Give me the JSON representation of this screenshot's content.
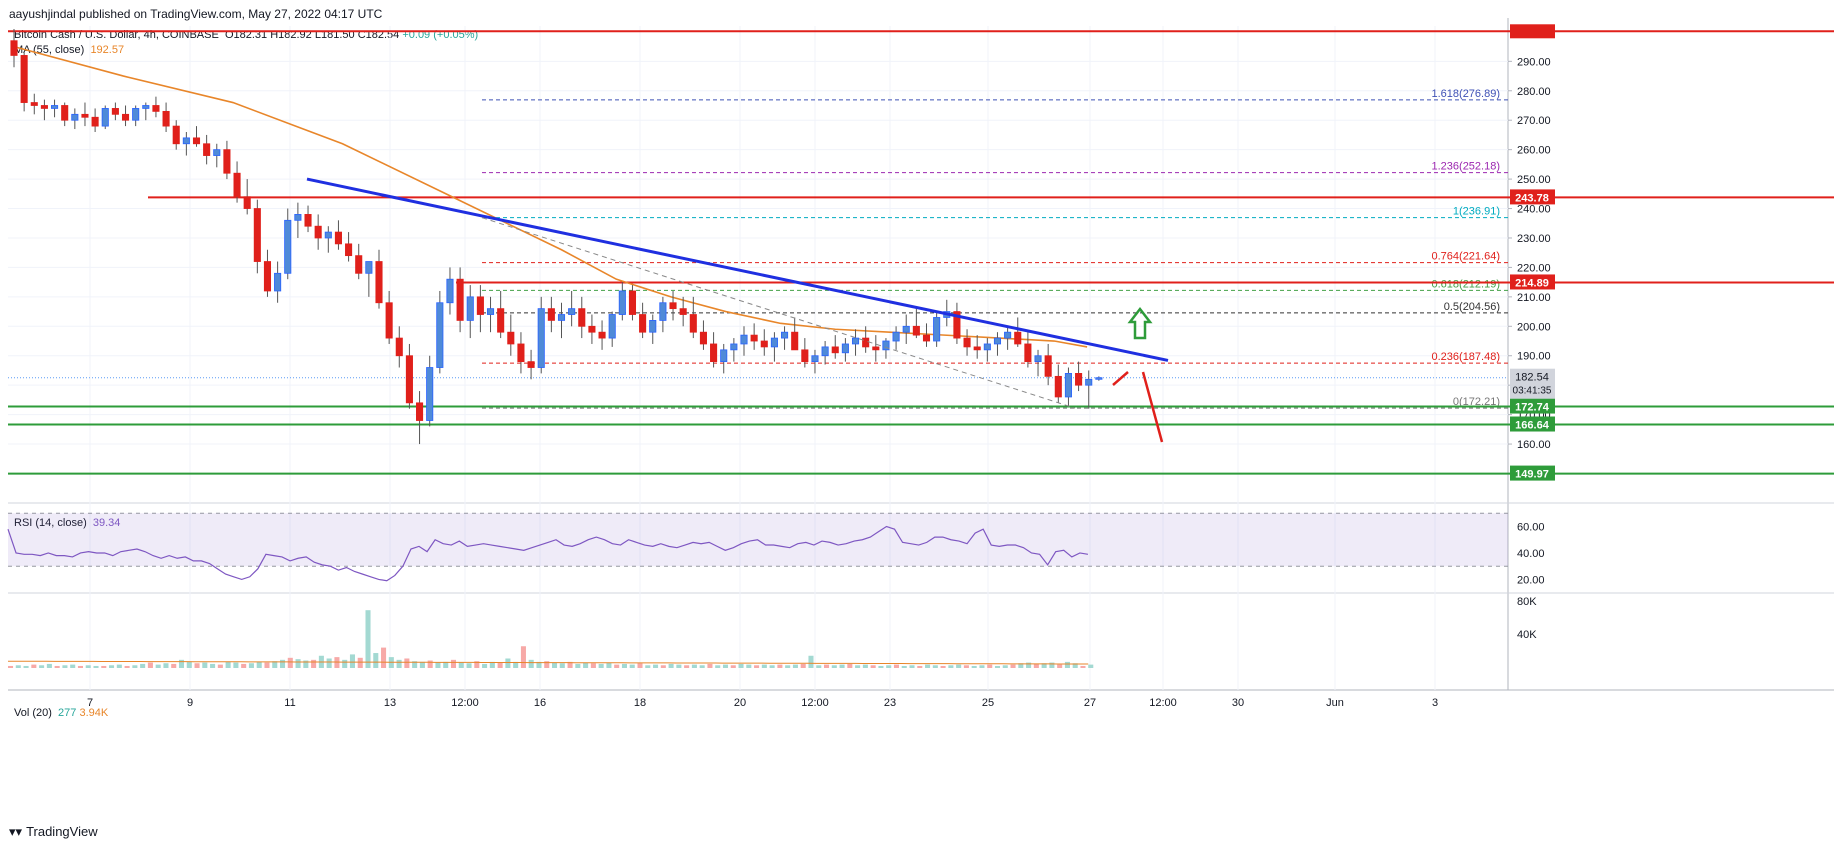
{
  "header": {
    "credit": "aayushjindal published on TradingView.com, May 27, 2022 04:17 UTC",
    "symbol": "Bitcoin Cash / U.S. Dollar, 4h, COINBASE",
    "ohlc": {
      "o": "O182.31",
      "h": "H182.92",
      "l": "L181.50",
      "c": "C182.54",
      "chg": "+0.09 (+0.05%)"
    },
    "ma_label": "MA (55, close)",
    "ma_value": "192.57",
    "rsi_label": "RSI (14, close)",
    "rsi_value": "39.34",
    "vol_label": "Vol (20)",
    "vol_value": "277",
    "vol_ma": "3.94K",
    "brand": "TradingView"
  },
  "chart_data": {
    "type": "candlestick",
    "currency": "USD",
    "price_axis": {
      "min": 141,
      "max": 302,
      "ticks": [
        160,
        170,
        180,
        190,
        200,
        210,
        220,
        230,
        240,
        250,
        260,
        270,
        280,
        290
      ]
    },
    "time_axis": {
      "labels": [
        "7",
        "9",
        "11",
        "13",
        "12:00",
        "16",
        "18",
        "20",
        "12:00",
        "23",
        "25",
        "27",
        "12:00",
        "30",
        "Jun",
        "3"
      ]
    },
    "last_price": {
      "value": "182.54",
      "countdown": "03:41:35"
    },
    "horizontal_levels": [
      {
        "price": 300.2,
        "color": "#e0201b",
        "label": ""
      },
      {
        "price": 243.78,
        "color": "#e0201b",
        "label": "243.78"
      },
      {
        "price": 214.89,
        "color": "#e0201b",
        "label": "214.89"
      },
      {
        "price": 172.74,
        "color": "#2e9c3a",
        "label": "172.74"
      },
      {
        "price": 166.64,
        "color": "#2e9c3a",
        "label": "166.64"
      },
      {
        "price": 149.97,
        "color": "#2e9c3a",
        "label": "149.97"
      }
    ],
    "fib_levels": [
      {
        "ratio": "1.618",
        "price": 276.89,
        "label": "1.618(276.89)",
        "color": "#3f51b5"
      },
      {
        "ratio": "1.236",
        "price": 252.18,
        "label": "1.236(252.18)",
        "color": "#9c27b0"
      },
      {
        "ratio": "1",
        "price": 236.91,
        "label": "1(236.91)",
        "color": "#00acc1"
      },
      {
        "ratio": "0.764",
        "price": 221.64,
        "label": "0.764(221.64)",
        "color": "#e0201b"
      },
      {
        "ratio": "0.618",
        "price": 212.19,
        "label": "0.618(212.19)",
        "color": "#43a047"
      },
      {
        "ratio": "0.5",
        "price": 204.56,
        "label": "0.5(204.56)",
        "color": "#333333"
      },
      {
        "ratio": "0.236",
        "price": 187.48,
        "label": "0.236(187.48)",
        "color": "#e0201b"
      },
      {
        "ratio": "0",
        "price": 172.21,
        "label": "0(172.21)",
        "color": "#777777"
      }
    ],
    "trendline": {
      "from": {
        "bar": 49,
        "price": 250
      },
      "to": {
        "bar": 188,
        "price": 188.4
      },
      "color": "#1f2fe0"
    },
    "candles": [
      [
        297,
        301,
        288,
        292
      ],
      [
        292,
        293,
        273,
        276
      ],
      [
        276,
        279,
        272,
        275
      ],
      [
        275,
        277,
        270,
        274
      ],
      [
        274,
        277,
        271,
        275
      ],
      [
        275,
        276,
        268,
        270
      ],
      [
        270,
        274,
        267,
        272
      ],
      [
        272,
        276,
        268,
        271
      ],
      [
        271,
        274,
        266,
        268
      ],
      [
        268,
        275,
        267,
        274
      ],
      [
        274,
        276,
        270,
        272
      ],
      [
        272,
        275,
        268,
        270
      ],
      [
        270,
        275,
        268,
        274
      ],
      [
        274,
        276,
        270,
        275
      ],
      [
        275,
        278,
        271,
        273
      ],
      [
        273,
        276,
        266,
        268
      ],
      [
        268,
        270,
        260,
        262
      ],
      [
        262,
        266,
        258,
        264
      ],
      [
        264,
        268,
        261,
        262
      ],
      [
        262,
        265,
        255,
        258
      ],
      [
        258,
        262,
        254,
        260
      ],
      [
        260,
        263,
        250,
        252
      ],
      [
        252,
        256,
        242,
        244
      ],
      [
        244,
        250,
        238,
        240
      ],
      [
        240,
        243,
        218,
        222
      ],
      [
        222,
        226,
        210,
        212
      ],
      [
        212,
        222,
        208,
        218
      ],
      [
        218,
        240,
        216,
        236
      ],
      [
        236,
        242,
        230,
        238
      ],
      [
        238,
        241,
        232,
        234
      ],
      [
        234,
        238,
        226,
        230
      ],
      [
        230,
        234,
        225,
        232
      ],
      [
        232,
        236,
        226,
        228
      ],
      [
        228,
        232,
        222,
        224
      ],
      [
        224,
        228,
        216,
        218
      ],
      [
        218,
        222,
        210,
        222
      ],
      [
        222,
        226,
        206,
        208
      ],
      [
        208,
        212,
        194,
        196
      ],
      [
        196,
        200,
        186,
        190
      ],
      [
        190,
        194,
        172,
        174
      ],
      [
        174,
        178,
        160,
        168
      ],
      [
        168,
        190,
        166,
        186
      ],
      [
        186,
        212,
        184,
        208
      ],
      [
        208,
        220,
        204,
        216
      ],
      [
        216,
        220,
        198,
        202
      ],
      [
        202,
        214,
        196,
        210
      ],
      [
        210,
        214,
        198,
        204
      ],
      [
        204,
        210,
        198,
        206
      ],
      [
        206,
        212,
        196,
        198
      ],
      [
        198,
        204,
        190,
        194
      ],
      [
        194,
        198,
        184,
        188
      ],
      [
        188,
        192,
        182,
        186
      ],
      [
        186,
        210,
        184,
        206
      ],
      [
        206,
        210,
        198,
        202
      ],
      [
        202,
        208,
        196,
        204
      ],
      [
        204,
        212,
        200,
        206
      ],
      [
        206,
        210,
        196,
        200
      ],
      [
        200,
        204,
        194,
        198
      ],
      [
        198,
        202,
        192,
        196
      ],
      [
        196,
        205,
        193,
        204
      ],
      [
        204,
        215,
        202,
        212
      ],
      [
        212,
        214,
        202,
        204
      ],
      [
        204,
        208,
        196,
        198
      ],
      [
        198,
        204,
        194,
        202
      ],
      [
        202,
        210,
        198,
        208
      ],
      [
        208,
        212,
        202,
        206
      ],
      [
        206,
        210,
        200,
        204
      ],
      [
        204,
        210,
        196,
        198
      ],
      [
        198,
        202,
        192,
        194
      ],
      [
        194,
        198,
        186,
        188
      ],
      [
        188,
        194,
        184,
        192
      ],
      [
        192,
        196,
        188,
        194
      ],
      [
        194,
        200,
        190,
        197
      ],
      [
        197,
        201,
        192,
        195
      ],
      [
        195,
        199,
        190,
        193
      ],
      [
        193,
        198,
        188,
        196
      ],
      [
        196,
        200,
        192,
        198
      ],
      [
        198,
        203,
        193,
        192
      ],
      [
        192,
        196,
        186,
        188
      ],
      [
        188,
        192,
        184,
        190
      ],
      [
        190,
        195,
        187,
        193
      ],
      [
        193,
        197,
        189,
        191
      ],
      [
        191,
        196,
        188,
        194
      ],
      [
        194,
        199,
        190,
        196
      ],
      [
        196,
        200,
        191,
        193
      ],
      [
        193,
        197,
        188,
        192
      ],
      [
        192,
        196,
        189,
        195
      ],
      [
        195,
        200,
        192,
        198
      ],
      [
        198,
        204,
        194,
        200
      ],
      [
        200,
        206,
        196,
        197
      ],
      [
        197,
        201,
        193,
        195
      ],
      [
        195,
        205,
        193,
        203
      ],
      [
        203,
        209,
        200,
        205
      ],
      [
        205,
        208,
        194,
        196
      ],
      [
        196,
        199,
        190,
        193
      ],
      [
        193,
        197,
        189,
        192
      ],
      [
        192,
        196,
        188,
        194
      ],
      [
        194,
        198,
        190,
        196
      ],
      [
        196,
        200,
        192,
        198
      ],
      [
        198,
        203,
        193,
        194
      ],
      [
        194,
        198,
        186,
        188
      ],
      [
        188,
        192,
        183,
        190
      ],
      [
        190,
        194,
        180,
        183
      ],
      [
        183,
        187,
        174,
        176
      ],
      [
        176,
        186,
        173,
        184
      ],
      [
        184,
        188,
        178,
        180
      ],
      [
        180,
        185,
        172,
        182
      ],
      [
        182,
        183,
        181.5,
        182.54
      ]
    ],
    "ma": [
      [
        0,
        295
      ],
      [
        10,
        285
      ],
      [
        20,
        276
      ],
      [
        30,
        262
      ],
      [
        40,
        244
      ],
      [
        50,
        226
      ],
      [
        55,
        216
      ],
      [
        60,
        210
      ],
      [
        65,
        205
      ],
      [
        70,
        201
      ],
      [
        75,
        199
      ],
      [
        80,
        198
      ],
      [
        85,
        197
      ],
      [
        90,
        196
      ],
      [
        95,
        195
      ],
      [
        98,
        193
      ]
    ],
    "rsi": {
      "levels": [
        70,
        30
      ],
      "ticks": [
        60,
        40,
        20
      ],
      "range": [
        12,
        74
      ],
      "values": [
        58,
        40,
        39,
        39,
        38,
        40,
        38,
        38,
        37,
        40,
        41,
        40,
        40,
        38,
        41,
        42,
        43,
        41,
        38,
        36,
        38,
        36,
        37,
        34,
        34,
        32,
        28,
        24,
        22,
        20,
        22,
        28,
        39,
        38,
        37,
        34,
        36,
        37,
        33,
        31,
        30,
        27,
        29,
        26,
        24,
        22,
        20,
        19,
        23,
        30,
        43,
        45,
        41,
        50,
        47,
        46,
        49,
        45,
        46,
        47,
        46,
        45,
        44,
        43,
        42,
        44,
        46,
        48,
        50,
        46,
        45,
        47,
        50,
        52,
        50,
        47,
        46,
        50,
        48,
        46,
        45,
        47,
        45,
        44,
        46,
        48,
        47,
        48,
        45,
        42,
        44,
        47,
        49,
        50,
        46,
        46,
        45,
        44,
        47,
        48,
        46,
        49,
        48,
        46,
        47,
        49,
        50,
        52,
        56,
        60,
        58,
        48,
        47,
        46,
        48,
        52,
        52,
        50,
        49,
        47,
        55,
        58,
        46,
        45,
        46,
        46,
        44,
        40,
        39,
        31,
        41,
        42,
        37,
        40,
        39
      ]
    },
    "volume": {
      "ticks": [
        "80K",
        "40K"
      ],
      "max": 100,
      "values": [
        3,
        4,
        3,
        5,
        4,
        6,
        3,
        4,
        5,
        3,
        4,
        3,
        3,
        4,
        5,
        3,
        4,
        6,
        8,
        5,
        7,
        6,
        12,
        9,
        7,
        8,
        6,
        5,
        9,
        8,
        6,
        7,
        9,
        8,
        10,
        12,
        15,
        13,
        11,
        12,
        18,
        14,
        16,
        12,
        20,
        15,
        85,
        22,
        30,
        16,
        12,
        14,
        10,
        9,
        11,
        8,
        9,
        12,
        8,
        7,
        10,
        6,
        9,
        8,
        14,
        9,
        32,
        12,
        9,
        10,
        8,
        7,
        9,
        6,
        8,
        7,
        6,
        8,
        5,
        6,
        5,
        7,
        4,
        5,
        4,
        6,
        5,
        4,
        5,
        4,
        6,
        4,
        5,
        4,
        6,
        5,
        4,
        5,
        4,
        5,
        4,
        5,
        6,
        18,
        4,
        5,
        4,
        5,
        6,
        4,
        5,
        4,
        3,
        4,
        5,
        3,
        4,
        3,
        5,
        4,
        3,
        4,
        5,
        4,
        3,
        4,
        5,
        3,
        4,
        5,
        7,
        8,
        6,
        7,
        8,
        5,
        9,
        7,
        3,
        5
      ]
    }
  }
}
